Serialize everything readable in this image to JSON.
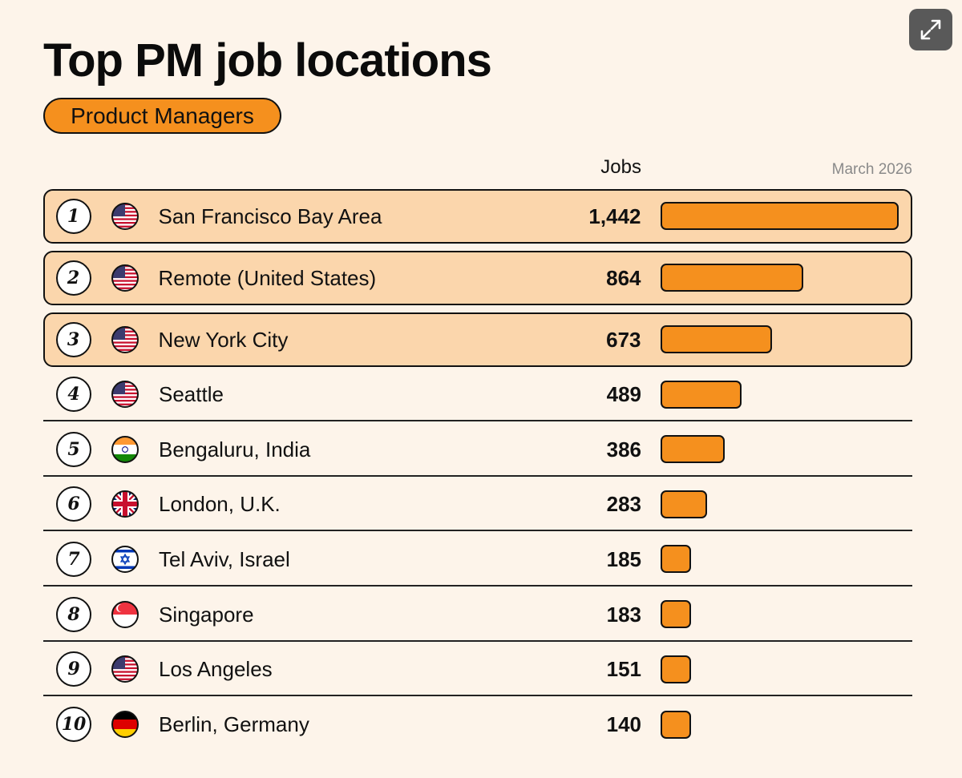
{
  "header": {
    "title": "Top PM job locations",
    "pill_label": "Product Managers",
    "jobs_column_label": "Jobs",
    "date_label": "March 2026",
    "expand_icon": "expand-icon"
  },
  "colors": {
    "background": "#fdf4ea",
    "bar": "#f5901e",
    "highlight_row": "#fbd6ac",
    "pill": "#f5901e"
  },
  "chart_data": {
    "type": "bar",
    "orientation": "horizontal",
    "title": "Top PM job locations",
    "subtitle": "Product Managers",
    "value_label": "Jobs",
    "date": "March 2026",
    "xlim": [
      0,
      1442
    ],
    "categories": [
      "San Francisco Bay Area",
      "Remote (United States)",
      "New York City",
      "Seattle",
      "Bengaluru, India",
      "London, U.K.",
      "Tel Aviv, Israel",
      "Singapore",
      "Los Angeles",
      "Berlin, Germany"
    ],
    "values": [
      1442,
      864,
      673,
      489,
      386,
      283,
      185,
      183,
      151,
      140
    ],
    "rows": [
      {
        "rank": "1",
        "city": "San Francisco Bay Area",
        "jobs": 1442,
        "jobs_label": "1,442",
        "flag": "us-flag-icon",
        "highlight": true
      },
      {
        "rank": "2",
        "city": "Remote (United States)",
        "jobs": 864,
        "jobs_label": "864",
        "flag": "us-flag-icon",
        "highlight": true
      },
      {
        "rank": "3",
        "city": "New York City",
        "jobs": 673,
        "jobs_label": "673",
        "flag": "us-flag-icon",
        "highlight": true
      },
      {
        "rank": "4",
        "city": "Seattle",
        "jobs": 489,
        "jobs_label": "489",
        "flag": "us-flag-icon",
        "highlight": false
      },
      {
        "rank": "5",
        "city": "Bengaluru, India",
        "jobs": 386,
        "jobs_label": "386",
        "flag": "india-flag-icon",
        "highlight": false
      },
      {
        "rank": "6",
        "city": "London, U.K.",
        "jobs": 283,
        "jobs_label": "283",
        "flag": "uk-flag-icon",
        "highlight": false
      },
      {
        "rank": "7",
        "city": "Tel Aviv, Israel",
        "jobs": 185,
        "jobs_label": "185",
        "flag": "israel-flag-icon",
        "highlight": false
      },
      {
        "rank": "8",
        "city": "Singapore",
        "jobs": 183,
        "jobs_label": "183",
        "flag": "singapore-flag-icon",
        "highlight": false
      },
      {
        "rank": "9",
        "city": "Los Angeles",
        "jobs": 151,
        "jobs_label": "151",
        "flag": "us-flag-icon",
        "highlight": false
      },
      {
        "rank": "10",
        "city": "Berlin, Germany",
        "jobs": 140,
        "jobs_label": "140",
        "flag": "germany-flag-icon",
        "highlight": false
      }
    ]
  }
}
